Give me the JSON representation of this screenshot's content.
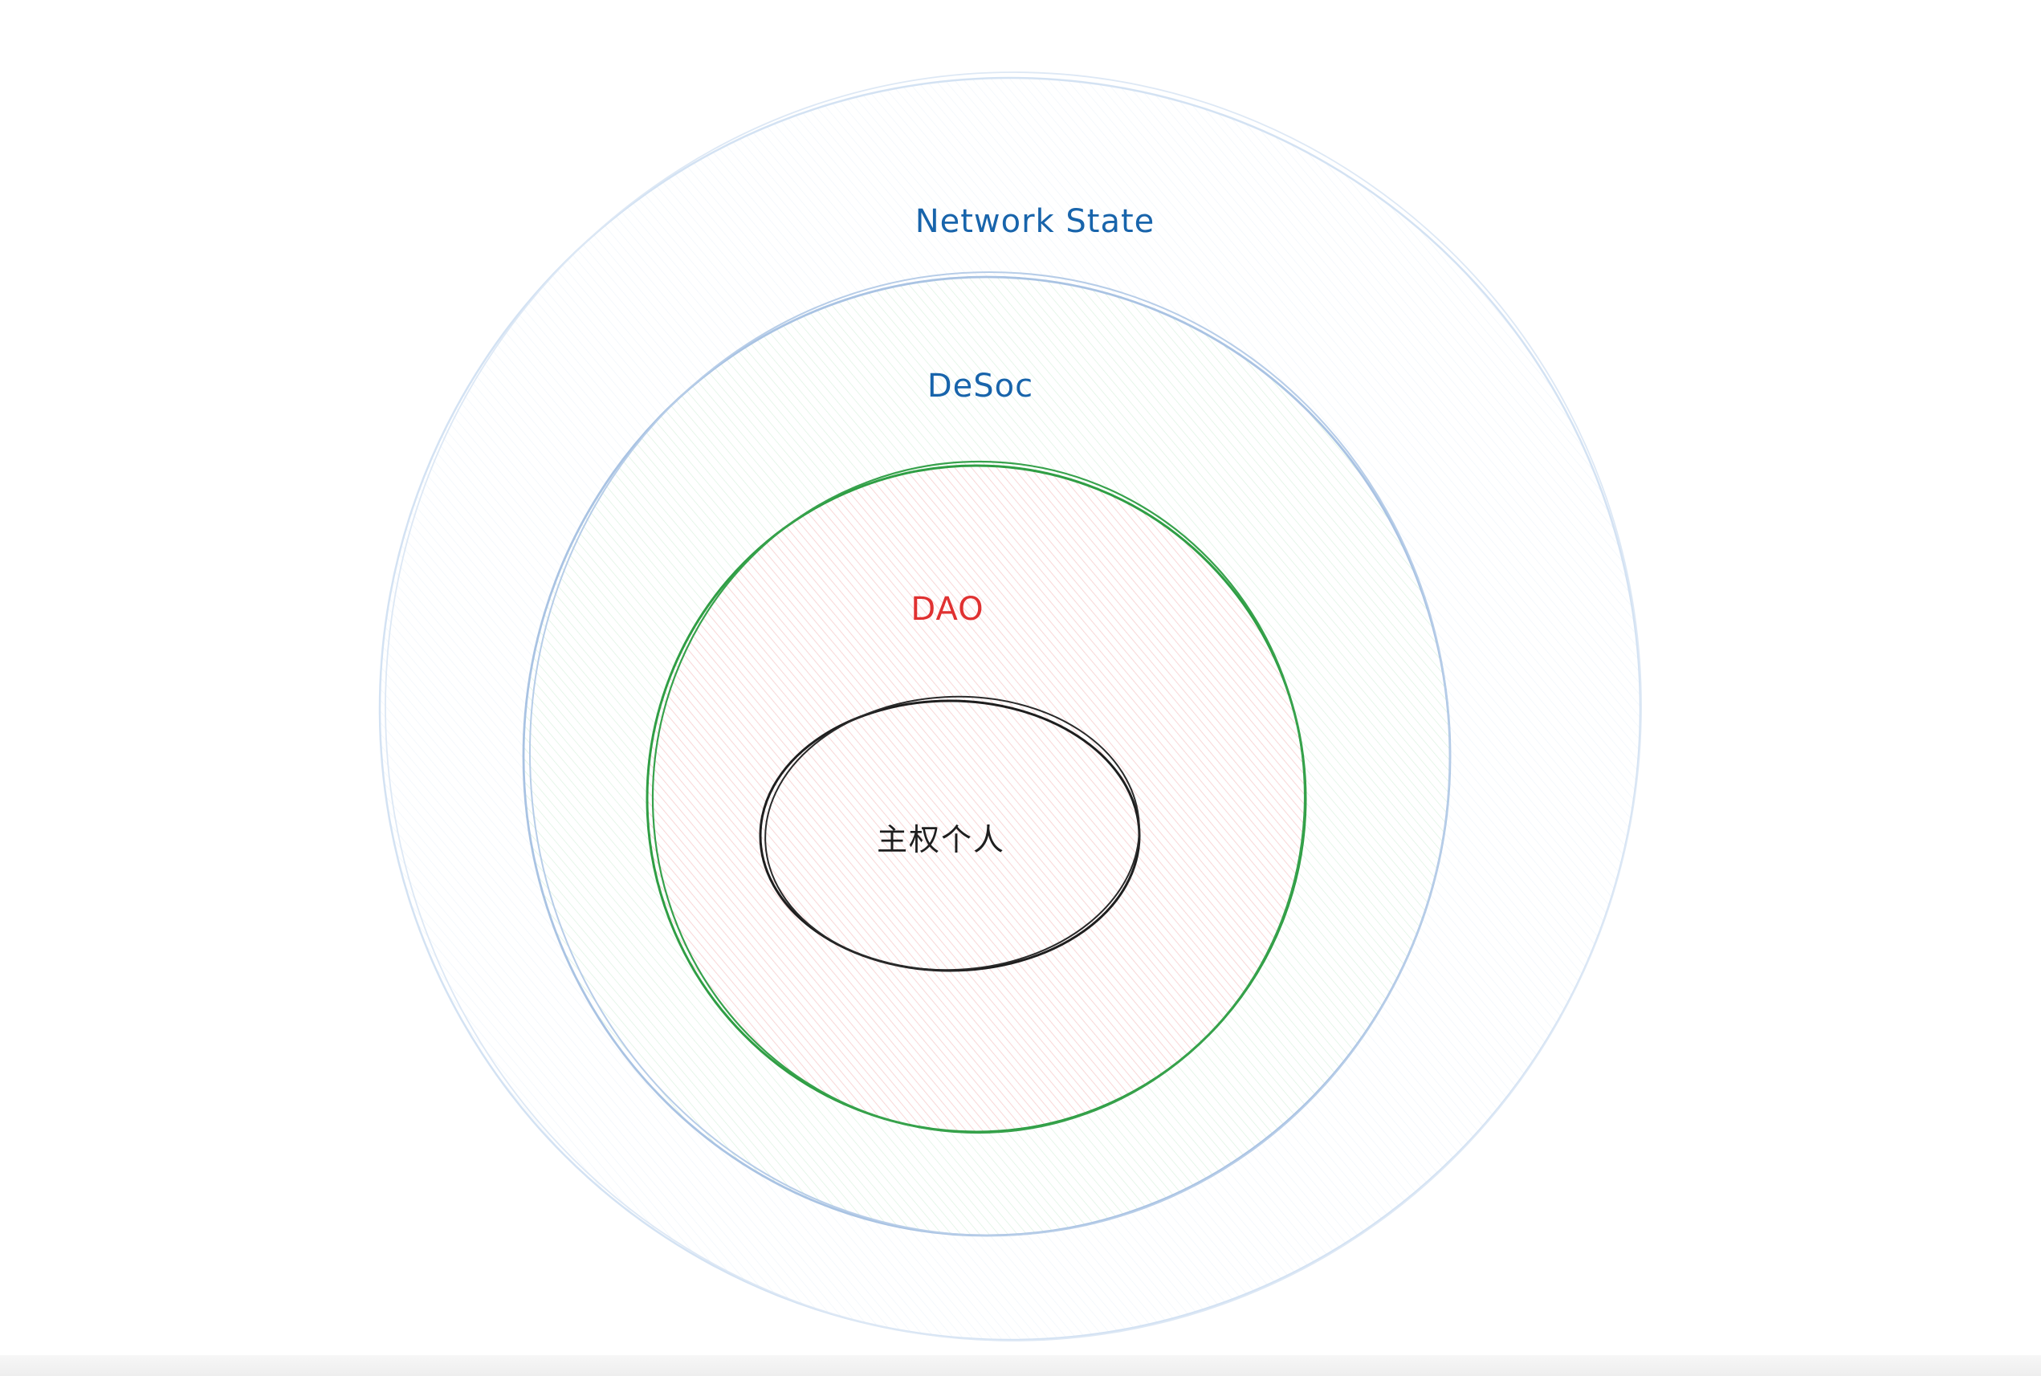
{
  "diagram": {
    "labels": {
      "network_state": "Network State",
      "desoc": "DeSoc",
      "dao": "DAO",
      "sovereign_individual": "主权个人"
    }
  },
  "colors": {
    "network_state_label": "#1864ab",
    "desoc_label": "#1864ab",
    "dao_label": "#e03131",
    "sovereign_label": "#1e1e1e",
    "network_state_stroke": "#d3e2f3",
    "desoc_stroke": "#a9c3e3",
    "dao_stroke": "#2f9e44",
    "sovereign_stroke": "#1e1e1e"
  }
}
